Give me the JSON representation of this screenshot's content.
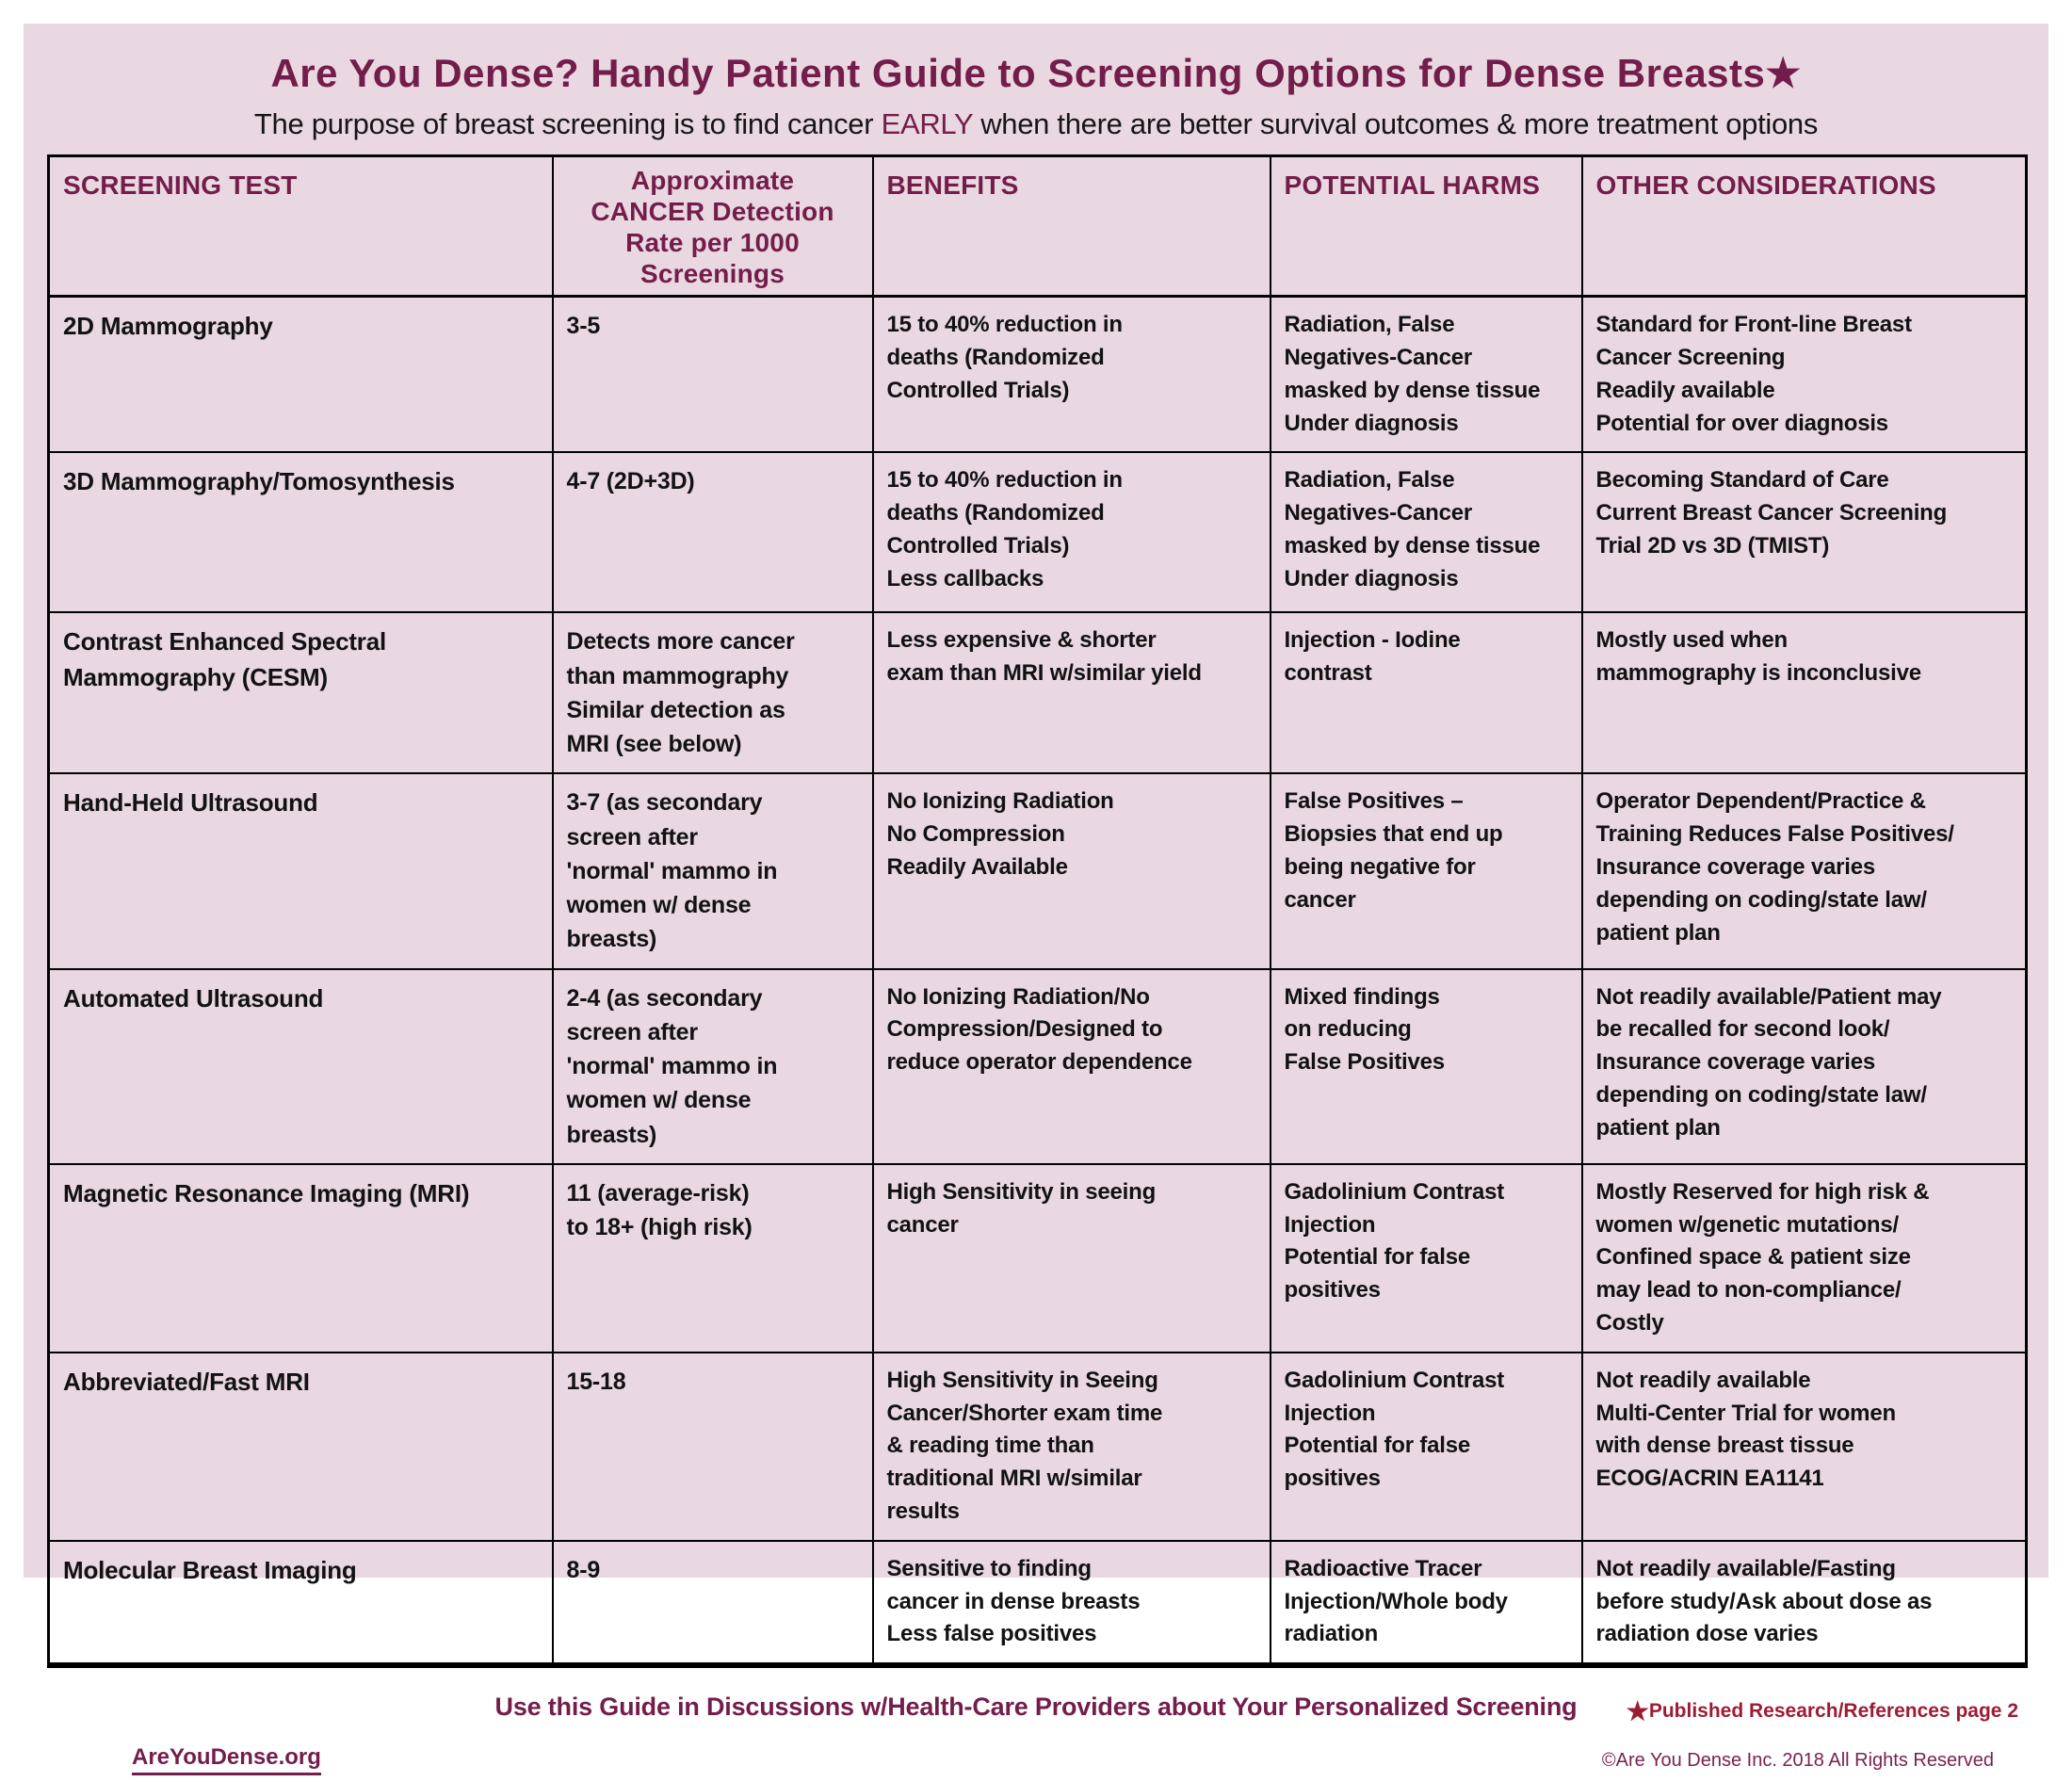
{
  "page": {
    "title": "Are You Dense? Handy Patient Guide to Screening Options for Dense Breasts★",
    "subtitle_prefix": "The purpose of breast screening is to find cancer ",
    "subtitle_highlight": "EARLY",
    "subtitle_suffix": " when there are better survival outcomes & more treatment options"
  },
  "colors": {
    "card_background": "#e9d7e1",
    "heading_maroon": "#731d4b",
    "reference_red": "#9c1c33",
    "body_text": "#121212",
    "border": "#000000"
  },
  "table": {
    "headers": [
      "SCREENING TEST",
      "Approximate\nCANCER Detection\nRate per 1000\nScreenings",
      "BENEFITS",
      "POTENTIAL HARMS",
      "OTHER CONSIDERATIONS"
    ],
    "rows": [
      {
        "test": "2D Mammography",
        "rate": "3-5",
        "benefits": "15 to 40% reduction in\ndeaths (Randomized\nControlled Trials)",
        "harms": "Radiation, False\nNegatives-Cancer\nmasked by dense tissue\nUnder diagnosis",
        "other": "Standard for Front-line Breast\nCancer Screening\nReadily available\nPotential for over diagnosis"
      },
      {
        "test": "3D Mammography/Tomosynthesis",
        "rate": "4-7 (2D+3D)",
        "benefits": "15 to 40% reduction in\ndeaths (Randomized\nControlled Trials)\nLess callbacks",
        "harms": "Radiation, False\nNegatives-Cancer\nmasked by dense tissue\nUnder diagnosis",
        "other": "Becoming Standard of Care\nCurrent Breast Cancer Screening\nTrial 2D vs 3D (TMIST)"
      },
      {
        "test": "Contrast Enhanced Spectral\nMammography (CESM)",
        "rate": "Detects more cancer\nthan mammography\nSimilar detection as\nMRI (see below)",
        "benefits": "Less expensive & shorter\nexam than MRI w/similar yield",
        "harms": "Injection - Iodine\ncontrast",
        "other": "Mostly used when\nmammography is inconclusive"
      },
      {
        "test": "Hand-Held Ultrasound",
        "rate": "3-7 (as secondary\nscreen after\n'normal' mammo in\nwomen w/ dense\nbreasts)",
        "benefits": "No Ionizing Radiation\nNo Compression\nReadily Available",
        "harms": "False Positives –\nBiopsies that end up\nbeing negative for\ncancer",
        "other": "Operator Dependent/Practice &\nTraining Reduces False Positives/\nInsurance coverage varies\ndepending on coding/state law/\npatient plan"
      },
      {
        "test": "Automated Ultrasound",
        "rate": "2-4 (as secondary\nscreen after\n'normal' mammo in\nwomen w/ dense\nbreasts)",
        "benefits": "No Ionizing Radiation/No\nCompression/Designed to\nreduce operator dependence",
        "harms": "Mixed findings\non reducing\nFalse Positives",
        "other": "Not readily available/Patient may\nbe recalled for second look/\nInsurance coverage varies\ndepending on coding/state law/\npatient plan"
      },
      {
        "test": "Magnetic Resonance Imaging (MRI)",
        "rate": "11 (average-risk)\nto 18+ (high risk)",
        "benefits": "High Sensitivity in seeing\ncancer",
        "harms": "Gadolinium Contrast\nInjection\nPotential for false\npositives",
        "other": "Mostly Reserved for high risk &\nwomen w/genetic mutations/\nConfined space & patient size\nmay lead to non-compliance/\nCostly"
      },
      {
        "test": "Abbreviated/Fast MRI",
        "rate": "15-18",
        "benefits": "High Sensitivity in Seeing\nCancer/Shorter exam time\n& reading time than\ntraditional MRI w/similar\nresults",
        "harms": "Gadolinium Contrast\nInjection\nPotential for false\npositives",
        "other": "Not readily available\nMulti-Center Trial for women\nwith dense breast tissue\nECOG/ACRIN EA1141"
      },
      {
        "test": "Molecular Breast Imaging",
        "rate": "8-9",
        "benefits": "Sensitive to finding\ncancer in dense breasts\nLess false positives",
        "harms": "Radioactive Tracer\nInjection/Whole body\nradiation",
        "other": "Not readily available/Fasting\nbefore study/Ask about dose as\nradiation dose varies"
      }
    ]
  },
  "footer": {
    "guide_note": "Use this Guide in Discussions w/Health-Care Providers about Your Personalized Screening",
    "reference_star": "★",
    "reference_note": "Published Research/References page 2",
    "website": "AreYouDense.org",
    "copyright": "©Are You Dense Inc. 2018 All Rights Reserved"
  }
}
